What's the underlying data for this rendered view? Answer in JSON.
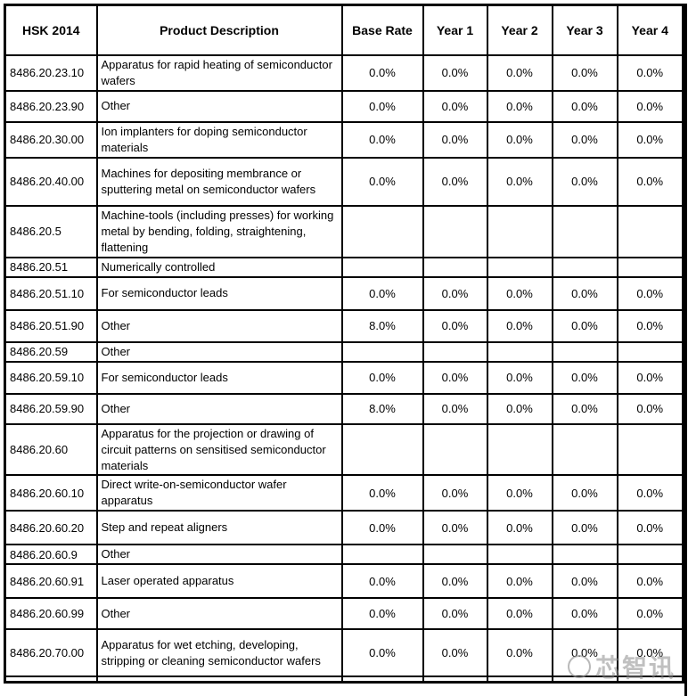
{
  "header": {
    "columns": [
      "HSK 2014",
      "Product Description",
      "Base Rate",
      "Year 1",
      "Year 2",
      "Year 3",
      "Year 4"
    ]
  },
  "table": {
    "rows": [
      {
        "code": "8486.20.23.10",
        "description": "Apparatus for rapid heating of semiconductor wafers",
        "rates": [
          "0.0%",
          "0.0%",
          "0.0%",
          "0.0%",
          "0.0%"
        ]
      },
      {
        "code": "8486.20.23.90",
        "description": "Other",
        "rates": [
          "0.0%",
          "0.0%",
          "0.0%",
          "0.0%",
          "0.0%"
        ]
      },
      {
        "code": "8486.20.30.00",
        "description": "Ion implanters for doping semiconductor materials",
        "rates": [
          "0.0%",
          "0.0%",
          "0.0%",
          "0.0%",
          "0.0%"
        ]
      },
      {
        "code": "8486.20.40.00",
        "description": "Machines for depositing membrance or sputtering metal on semiconductor wafers",
        "rates": [
          "0.0%",
          "0.0%",
          "0.0%",
          "0.0%",
          "0.0%"
        ]
      },
      {
        "code": "8486.20.5",
        "description": "Machine-tools (including presses) for working metal by bending, folding, straightening, flattening",
        "rates": [
          "",
          "",
          "",
          "",
          ""
        ]
      },
      {
        "code": "8486.20.51",
        "description": "Numerically controlled",
        "rates": [
          "",
          "",
          "",
          "",
          ""
        ]
      },
      {
        "code": "8486.20.51.10",
        "description": "For semiconductor leads",
        "rates": [
          "0.0%",
          "0.0%",
          "0.0%",
          "0.0%",
          "0.0%"
        ]
      },
      {
        "code": "8486.20.51.90",
        "description": "Other",
        "rates": [
          "8.0%",
          "0.0%",
          "0.0%",
          "0.0%",
          "0.0%"
        ]
      },
      {
        "code": "8486.20.59",
        "description": "Other",
        "rates": [
          "",
          "",
          "",
          "",
          ""
        ]
      },
      {
        "code": "8486.20.59.10",
        "description": "For semiconductor leads",
        "rates": [
          "0.0%",
          "0.0%",
          "0.0%",
          "0.0%",
          "0.0%"
        ]
      },
      {
        "code": "8486.20.59.90",
        "description": "Other",
        "rates": [
          "8.0%",
          "0.0%",
          "0.0%",
          "0.0%",
          "0.0%"
        ]
      },
      {
        "code": "8486.20.60",
        "description": "Apparatus for the projection or drawing of circuit patterns on sensitised semiconductor materials",
        "rates": [
          "",
          "",
          "",
          "",
          ""
        ]
      },
      {
        "code": "8486.20.60.10",
        "description": "Direct write-on-semiconductor wafer apparatus",
        "rates": [
          "0.0%",
          "0.0%",
          "0.0%",
          "0.0%",
          "0.0%"
        ]
      },
      {
        "code": "8486.20.60.20",
        "description": "Step and repeat aligners",
        "rates": [
          "0.0%",
          "0.0%",
          "0.0%",
          "0.0%",
          "0.0%"
        ]
      },
      {
        "code": "8486.20.60.9",
        "description": "Other",
        "rates": [
          "",
          "",
          "",
          "",
          ""
        ]
      },
      {
        "code": "8486.20.60.91",
        "description": "Laser operated apparatus",
        "rates": [
          "0.0%",
          "0.0%",
          "0.0%",
          "0.0%",
          "0.0%"
        ]
      },
      {
        "code": "8486.20.60.99",
        "description": "Other",
        "rates": [
          "0.0%",
          "0.0%",
          "0.0%",
          "0.0%",
          "0.0%"
        ]
      },
      {
        "code": "8486.20.70.00",
        "description": "Apparatus for wet etching, developing, stripping or cleaning semiconductor wafers",
        "rates": [
          "0.0%",
          "0.0%",
          "0.0%",
          "0.0%",
          "0.0%"
        ]
      }
    ]
  },
  "watermark": {
    "text": "芯智讯"
  },
  "colors": {
    "border": "#000000",
    "background": "#ffffff",
    "text": "#000000",
    "watermark_gray": "#8c8c8c"
  }
}
